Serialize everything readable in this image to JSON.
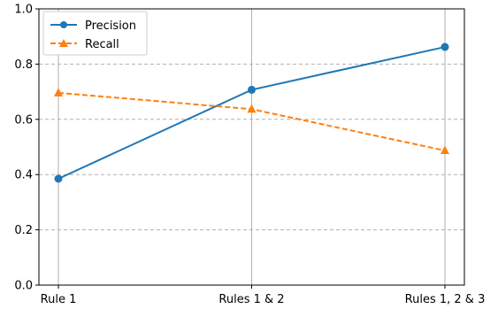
{
  "chart_data": {
    "type": "line",
    "categories": [
      "Rule 1",
      "Rules 1 & 2",
      "Rules 1, 2 & 3"
    ],
    "series": [
      {
        "name": "Precision",
        "values": [
          0.385,
          0.707,
          0.862
        ],
        "color": "#1f77b4",
        "line_style": "solid",
        "marker": "circle"
      },
      {
        "name": "Recall",
        "values": [
          0.696,
          0.637,
          0.487
        ],
        "color": "#ff7f0e",
        "line_style": "dashed",
        "marker": "triangle"
      }
    ],
    "title": "",
    "xlabel": "",
    "ylabel": "",
    "ylim": [
      0.0,
      1.0
    ],
    "yticks": [
      "0.0",
      "0.2",
      "0.4",
      "0.6",
      "0.8",
      "1.0"
    ],
    "grid": {
      "vertical": true,
      "horizontal": "dashed"
    },
    "legend_position": "top-left"
  }
}
